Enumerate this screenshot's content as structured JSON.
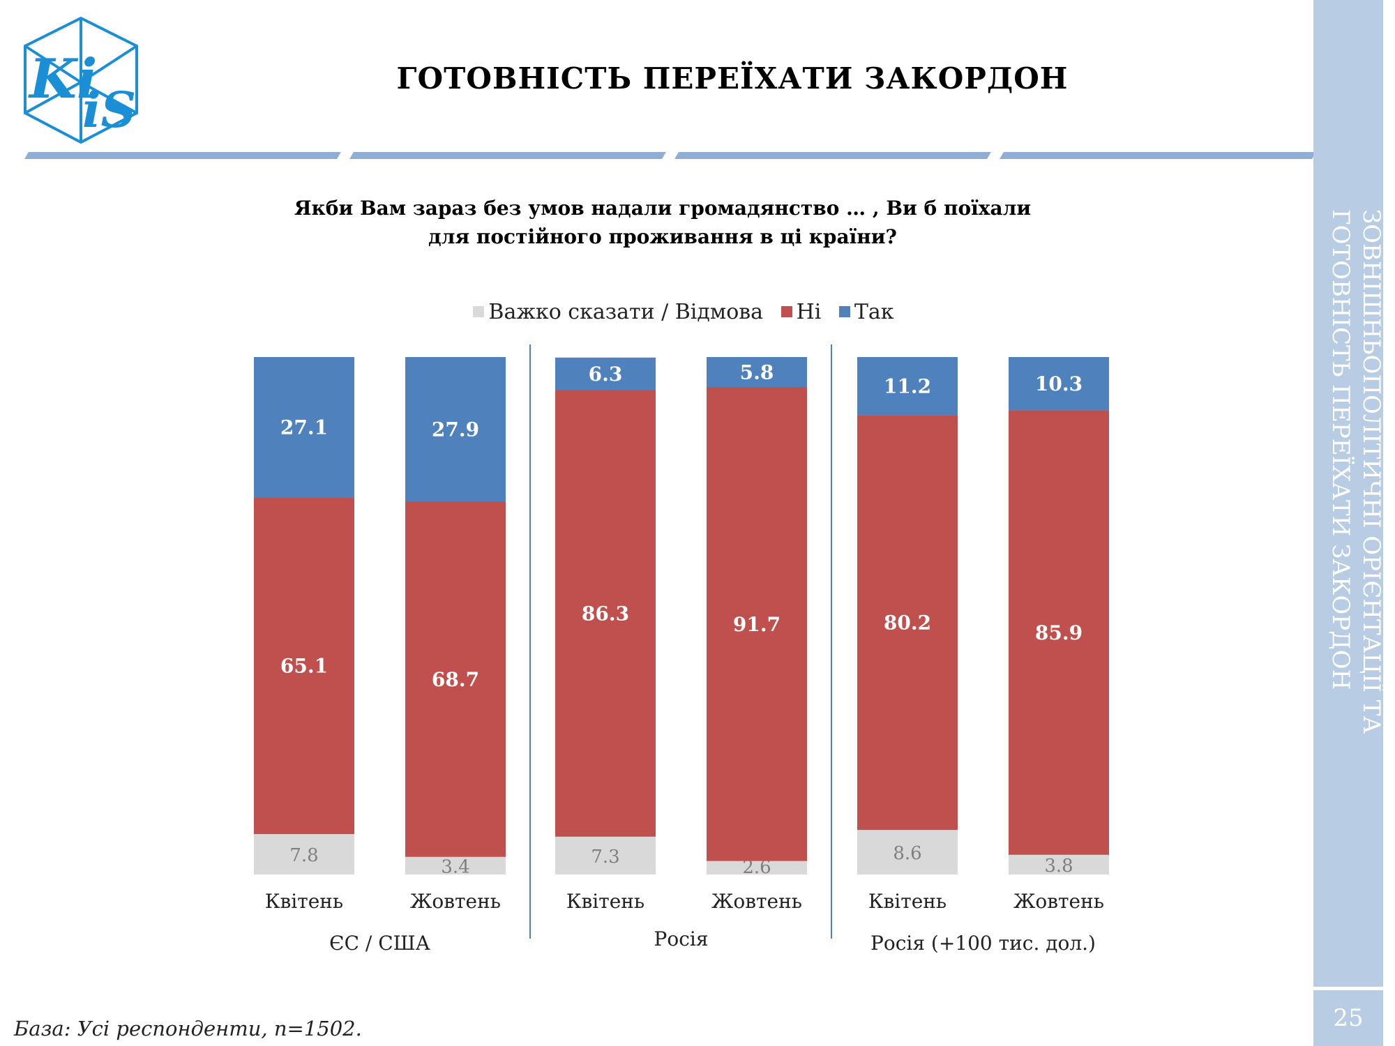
{
  "header": {
    "title": "ГОТОВНІСТЬ ПЕРЕЇХАТИ ЗАКОРДОН",
    "logo_text": "KiiS"
  },
  "question": {
    "line1": "Якби Вам зараз без умов надали громадянство … , Ви б поїхали",
    "line2": "для постійного проживання в ці країни?"
  },
  "sidebar": {
    "line1": "ЗОВНІШНЬОПОЛІТИЧНІ ОРІЄНТАЦІЇ ТА",
    "line2": "ГОТОВНІСТЬ ПЕРЕЇХАТИ ЗАКОРДОН",
    "page_number": "25"
  },
  "footer": "База: Усі респонденти, n=1502.",
  "chart_data": {
    "type": "bar",
    "stacked": true,
    "legend_position": "top",
    "categories": [
      "Квітень",
      "Жовтень",
      "Квітень",
      "Жовтень",
      "Квітень",
      "Жовтень"
    ],
    "groups": [
      {
        "label": "ЄС / США",
        "categories": [
          0,
          1
        ]
      },
      {
        "label": "Росія",
        "categories": [
          2,
          3
        ]
      },
      {
        "label": "Росія (+100 тис. дол.)",
        "categories": [
          4,
          5
        ]
      }
    ],
    "series": [
      {
        "name": "Важко сказати / Відмова",
        "color": "#d9d9d9",
        "label_color": "#7f7f7f",
        "values": [
          7.8,
          3.4,
          7.3,
          2.6,
          8.6,
          3.8
        ]
      },
      {
        "name": "Ні",
        "color": "#c0504d",
        "label_color": "#ffffff",
        "values": [
          65.1,
          68.7,
          86.3,
          91.7,
          80.2,
          85.9
        ]
      },
      {
        "name": "Так",
        "color": "#4f81bd",
        "label_color": "#ffffff",
        "values": [
          27.1,
          27.9,
          6.3,
          5.8,
          11.2,
          10.3
        ]
      }
    ],
    "ylim": [
      0,
      100
    ],
    "grid": false
  }
}
